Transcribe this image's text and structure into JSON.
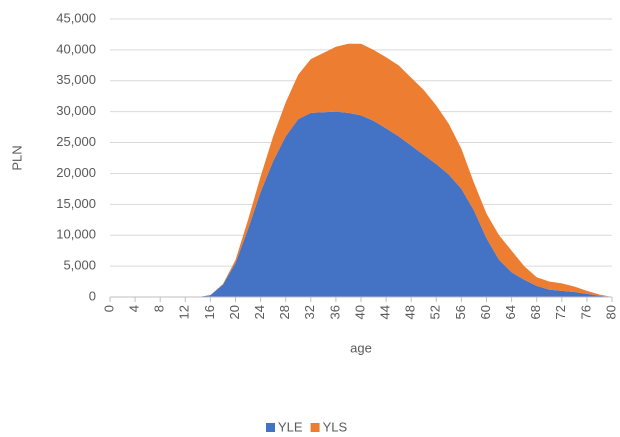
{
  "chart_data": {
    "type": "stacked-area",
    "x_label": "age",
    "y_label": "PLN",
    "x": [
      0,
      2,
      4,
      6,
      8,
      10,
      12,
      14,
      16,
      18,
      20,
      22,
      24,
      26,
      28,
      30,
      32,
      34,
      36,
      38,
      40,
      42,
      44,
      46,
      48,
      50,
      52,
      54,
      56,
      58,
      60,
      62,
      64,
      66,
      68,
      70,
      72,
      74,
      76,
      78,
      80
    ],
    "series": [
      {
        "name": "YLE",
        "color": "#4472c4",
        "values": [
          0,
          0,
          0,
          0,
          0,
          0,
          0,
          0,
          300,
          2000,
          5500,
          11000,
          17000,
          22000,
          26000,
          28800,
          29800,
          29900,
          30000,
          29800,
          29400,
          28500,
          27300,
          26000,
          24500,
          23000,
          21500,
          19800,
          17500,
          14000,
          9500,
          6000,
          4000,
          2800,
          1800,
          1200,
          1000,
          800,
          500,
          200,
          0
        ]
      },
      {
        "name": "YLS",
        "color": "#ed7d31",
        "values": [
          0,
          0,
          0,
          0,
          0,
          0,
          0,
          0,
          0,
          100,
          500,
          1500,
          2500,
          4000,
          5500,
          7200,
          8700,
          9600,
          10500,
          11200,
          11600,
          11500,
          11500,
          11500,
          11000,
          10500,
          9500,
          8200,
          6500,
          4500,
          4000,
          4000,
          3500,
          2200,
          1400,
          1300,
          1200,
          900,
          500,
          200,
          0
        ]
      }
    ],
    "xlim": [
      0,
      80
    ],
    "xticks": [
      0,
      4,
      8,
      12,
      16,
      20,
      24,
      28,
      32,
      36,
      40,
      44,
      48,
      52,
      56,
      60,
      64,
      68,
      72,
      76,
      80
    ],
    "ylim": [
      0,
      45000
    ],
    "yticks": [
      0,
      {
        "value": 5000,
        "label": "5,000"
      },
      {
        "value": 10000,
        "label": "10,000"
      },
      {
        "value": 15000,
        "label": "15,000"
      },
      {
        "value": 20000,
        "label": "20,000"
      },
      {
        "value": 25000,
        "label": "25,000"
      },
      {
        "value": 30000,
        "label": "30,000"
      },
      {
        "value": 35000,
        "label": "35,000"
      },
      {
        "value": 40000,
        "label": "40,000"
      },
      {
        "value": 45000,
        "label": "45,000"
      }
    ],
    "grid": true,
    "legend": "bottom"
  }
}
